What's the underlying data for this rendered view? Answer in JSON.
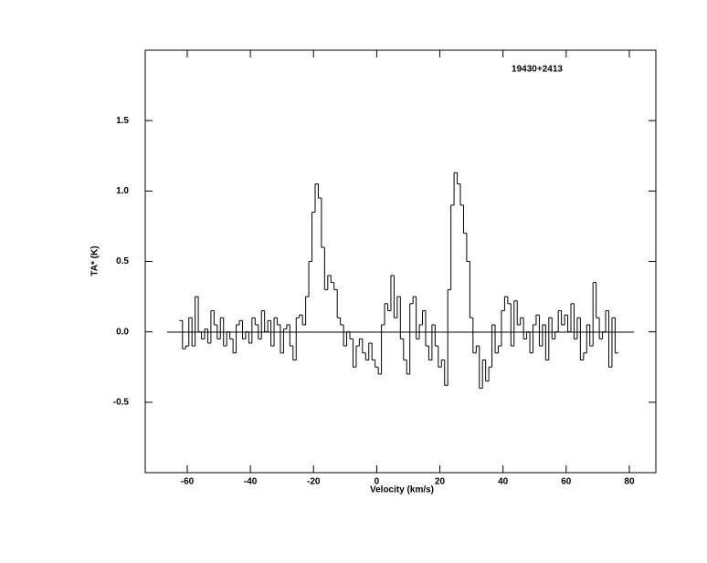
{
  "chart_data": {
    "type": "step",
    "title": "19430+2413",
    "x_label": "Velocity (km/s)",
    "y_label": "TA* (K)",
    "xlim": [
      -73.3,
      88.4
    ],
    "ylim": [
      -1.0,
      2.0
    ],
    "xticks": [
      -60,
      -40,
      -20,
      0,
      20,
      40,
      60,
      80
    ],
    "yticks": [
      {
        "value": -0.5,
        "label": "-0.5"
      },
      {
        "value": 0,
        "label": "0.0"
      },
      {
        "value": 0.5,
        "label": "0.5"
      },
      {
        "value": 1.0,
        "label": "1.0"
      },
      {
        "value": 1.5,
        "label": "1.5"
      }
    ],
    "color": "#000000",
    "x": [
      -62,
      -61,
      -60,
      -59,
      -58,
      -57,
      -56,
      -55,
      -54,
      -53,
      -52,
      -51,
      -50,
      -49,
      -48,
      -47,
      -46,
      -45,
      -44,
      -43,
      -42,
      -41,
      -40,
      -39,
      -38,
      -37,
      -36,
      -35,
      -34,
      -33,
      -32,
      -31,
      -30,
      -29,
      -28,
      -27,
      -26,
      -25,
      -24,
      -23,
      -22,
      -21,
      -20,
      -19,
      -18,
      -17,
      -16,
      -15,
      -14,
      -13,
      -12,
      -11,
      -10,
      -9,
      -8,
      -7,
      -6,
      -5,
      -4,
      -3,
      -2,
      -1,
      0,
      1,
      2,
      3,
      4,
      5,
      6,
      7,
      8,
      9,
      10,
      11,
      12,
      13,
      14,
      15,
      16,
      17,
      18,
      19,
      20,
      21,
      22,
      23,
      24,
      25,
      26,
      27,
      28,
      29,
      30,
      31,
      32,
      33,
      34,
      35,
      36,
      37,
      38,
      39,
      40,
      41,
      42,
      43,
      44,
      45,
      46,
      47,
      48,
      49,
      50,
      51,
      52,
      53,
      54,
      55,
      56,
      57,
      58,
      59,
      60,
      61,
      62,
      63,
      64,
      65,
      66,
      67,
      68,
      69,
      70,
      71,
      72,
      73,
      74,
      75,
      76
    ],
    "values": [
      0.08,
      -0.12,
      -0.1,
      0.1,
      -0.1,
      0.25,
      0.0,
      -0.05,
      0.02,
      -0.08,
      0.15,
      0.05,
      -0.05,
      0.1,
      -0.1,
      0.0,
      -0.05,
      -0.15,
      0.05,
      0.08,
      -0.05,
      0.0,
      -0.08,
      0.1,
      0.05,
      -0.05,
      0.15,
      0.0,
      0.08,
      -0.1,
      0.1,
      0.05,
      -0.15,
      0.02,
      0.05,
      -0.1,
      -0.2,
      0.1,
      0.12,
      0.05,
      0.25,
      0.5,
      0.85,
      1.05,
      0.95,
      0.6,
      0.3,
      0.4,
      0.35,
      0.3,
      0.1,
      0.05,
      -0.1,
      0.0,
      -0.05,
      -0.25,
      -0.1,
      -0.05,
      -0.15,
      -0.2,
      -0.08,
      -0.2,
      -0.25,
      -0.3,
      0.05,
      0.2,
      0.15,
      0.4,
      0.1,
      0.25,
      -0.05,
      -0.2,
      -0.3,
      0.2,
      0.25,
      -0.05,
      0.05,
      0.15,
      -0.1,
      -0.2,
      0.05,
      -0.1,
      -0.25,
      -0.2,
      -0.38,
      0.3,
      0.9,
      1.13,
      1.05,
      0.9,
      0.7,
      0.5,
      0.1,
      -0.15,
      -0.1,
      -0.4,
      -0.2,
      -0.35,
      -0.25,
      0.05,
      -0.15,
      -0.1,
      0.15,
      0.25,
      0.2,
      -0.1,
      0.22,
      0.05,
      0.1,
      -0.05,
      0.0,
      -0.15,
      0.05,
      0.12,
      -0.1,
      0.05,
      -0.2,
      0.1,
      -0.05,
      0.0,
      0.15,
      0.05,
      0.12,
      0.0,
      0.2,
      -0.05,
      0.1,
      -0.2,
      -0.15,
      0.05,
      -0.1,
      0.35,
      0.1,
      -0.05,
      0.0,
      0.15,
      -0.25,
      0.1,
      -0.15
    ]
  }
}
